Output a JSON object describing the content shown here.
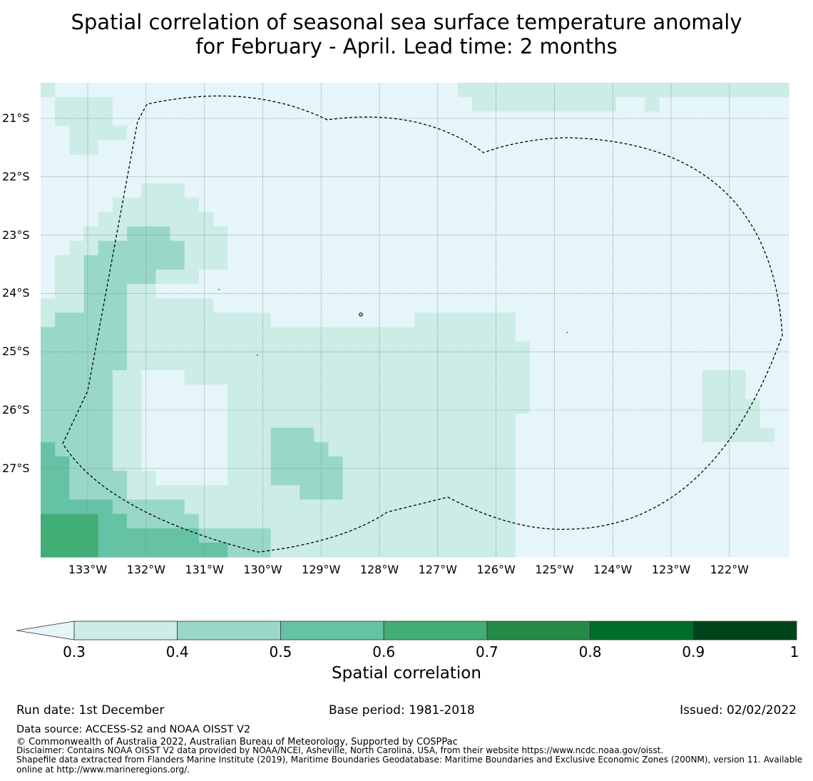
{
  "title_line1": "Spatial correlation of seasonal sea surface temperature anomaly",
  "title_line2": "for February - April. Lead time: 2 months",
  "map": {
    "lat_labels": [
      "21°S",
      "22°S",
      "23°S",
      "24°S",
      "25°S",
      "26°S",
      "27°S"
    ],
    "lon_labels": [
      "133°W",
      "132°W",
      "131°W",
      "130°W",
      "129°W",
      "128°W",
      "127°W",
      "126°W",
      "125°W",
      "124°W",
      "123°W",
      "122°W"
    ],
    "boundary": "EEZ dashed boundary",
    "bin_colors": [
      "#e5f5f9",
      "#ccece6",
      "#99d8c9",
      "#66c2a4",
      "#41ae76",
      "#238b45",
      "#006d2c",
      "#00441b"
    ],
    "grid_cols": 52,
    "grid_rows": 33,
    "grid": [
      "1000000000000000000000000000011111111111111111111111",
      "0111100000000000000000000000001111111111001000000000",
      "0111100000000000000000000000000000000000000000000000",
      "0011110000000000000000000000000000000000000000000000",
      "0011000000000000000000000000000000000000000000000000",
      "0000000000000000000000000000000000000000000000000000",
      "0000000000000000000000000000000000000000000000000000",
      "0000000111000000000000000000000000000000000000000000",
      "0000011111100000000000000000000000000000000000000000",
      "0000111111110000000000000000000000000000000000000000",
      "0001112221111000000000000000000000000000000000000000",
      "0011222222111000000000000000000000000000000000000000",
      "0112222222111000000000000000000000000000000000000000",
      "0112222211100000000000000000000000000000000000000000",
      "0112221100000000000000000000000000000000000000000000",
      "1112221111110000000000000000000000000000000000000000",
      "1222221111111111000000000011111110000000000000000000",
      "2222221111111111111111111111111110000000000000000000",
      "2222221111111111111111111111111111000000000000000000",
      "2222221111111111111111111111111111000000000000000000",
      "2222211000111111111111111111111111000000000000111000",
      "2222211000000111111111111111111111000000000000111000",
      "2222211000000111111111111111111111000000000000111100",
      "2222211000000111111111111111111110000000000000111100",
      "2222211000000111222111111111111110000000000000111110",
      "3222211000000111222211111111111110000000000000000000",
      "3322211000000111222221111111111110000000000000000000",
      "3322221100000111222221111111111110000000000000000000",
      "3322221111111111112221111111111110000000000000000000",
      "3333322222111111111111111111111110000000000000000000",
      "4444332222211111111111111111111110000000000000000000",
      "4444333333322222111111111111111110000000000000000000",
      "4444333333333222111111111111111110000000000000000000"
    ]
  },
  "colorbar": {
    "ticks": [
      "0.3",
      "0.4",
      "0.5",
      "0.6",
      "0.7",
      "0.8",
      "0.9",
      "1"
    ],
    "label": "Spatial correlation"
  },
  "footer": {
    "run_date": "Run date: 1st December",
    "base_period": "Base period: 1981-2018",
    "issued": "Issued: 02/02/2022",
    "data_source": "Data source: ACCESS-S2 and NOAA OISST V2",
    "copyright": "© Commonwealth of Australia 2022, Australian Bureau of Meteorology, Supported by COSPPac",
    "disclaimer": "Disclaimer: Contains NOAA OISST V2 data provided by NOAA/NCEI, Asheville, North Carolina, USA, from their website https://www.ncdc.noaa.gov/oisst.",
    "shapefile_1": "Shapefile data extracted from Flanders Marine Institute (2019), Maritime Boundaries Geodatabase: Maritime Boundaries and Exclusive Economic Zones (200NM), version 11. Available",
    "shapefile_2": "online at http://www.marineregions.org/."
  }
}
